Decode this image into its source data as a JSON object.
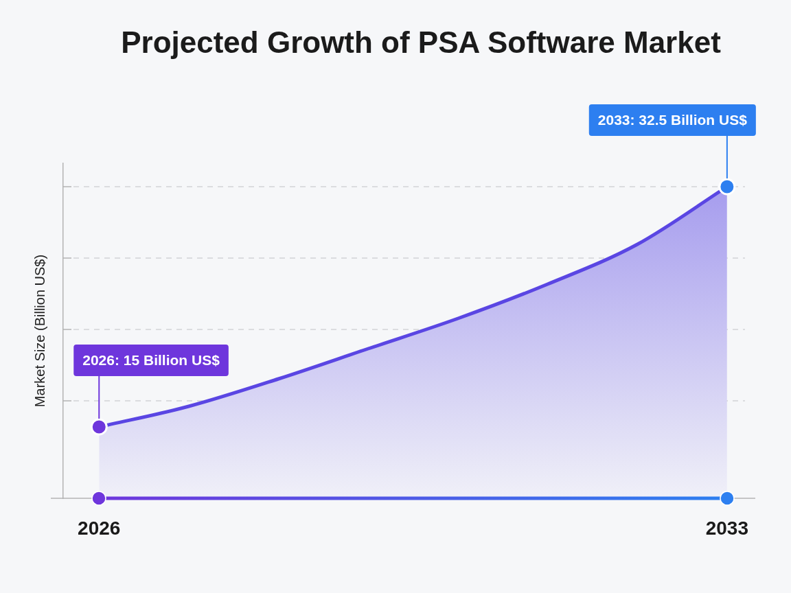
{
  "chart_data": {
    "type": "area",
    "title": "Projected Growth of PSA Software Market",
    "ylabel": "Market Size (Billion US$)",
    "x": [
      2026,
      2027,
      2028,
      2029,
      2030,
      2031,
      2032,
      2033
    ],
    "series": [
      {
        "values": [
          15,
          16.5,
          18.5,
          20.7,
          22.9,
          25.4,
          28.3,
          32.5
        ],
        "color": "#5a46e3",
        "marker": "none"
      },
      {
        "type": "scatter",
        "x": [
          2026,
          2033
        ],
        "values": [
          15,
          32.5
        ],
        "colors": [
          "#6e36dc",
          "#2d7ff0"
        ],
        "value_labels": [
          "2026: 15 Billion US$",
          "2033: 32.5 Billion US$"
        ]
      }
    ],
    "xlim": [
      2025.6,
      2033.2
    ],
    "xticks": [
      2026,
      2033
    ],
    "ylim": [
      9.8,
      34.2
    ],
    "yticks": [
      {
        "value": 16.9,
        "label": null
      },
      {
        "value": 22.1,
        "label": null
      },
      {
        "value": 27.3,
        "label": null
      },
      {
        "value": 32.5,
        "label": null
      }
    ],
    "tick_labels": "x",
    "grid": "y",
    "marker": "circle",
    "line_style": "solid"
  }
}
